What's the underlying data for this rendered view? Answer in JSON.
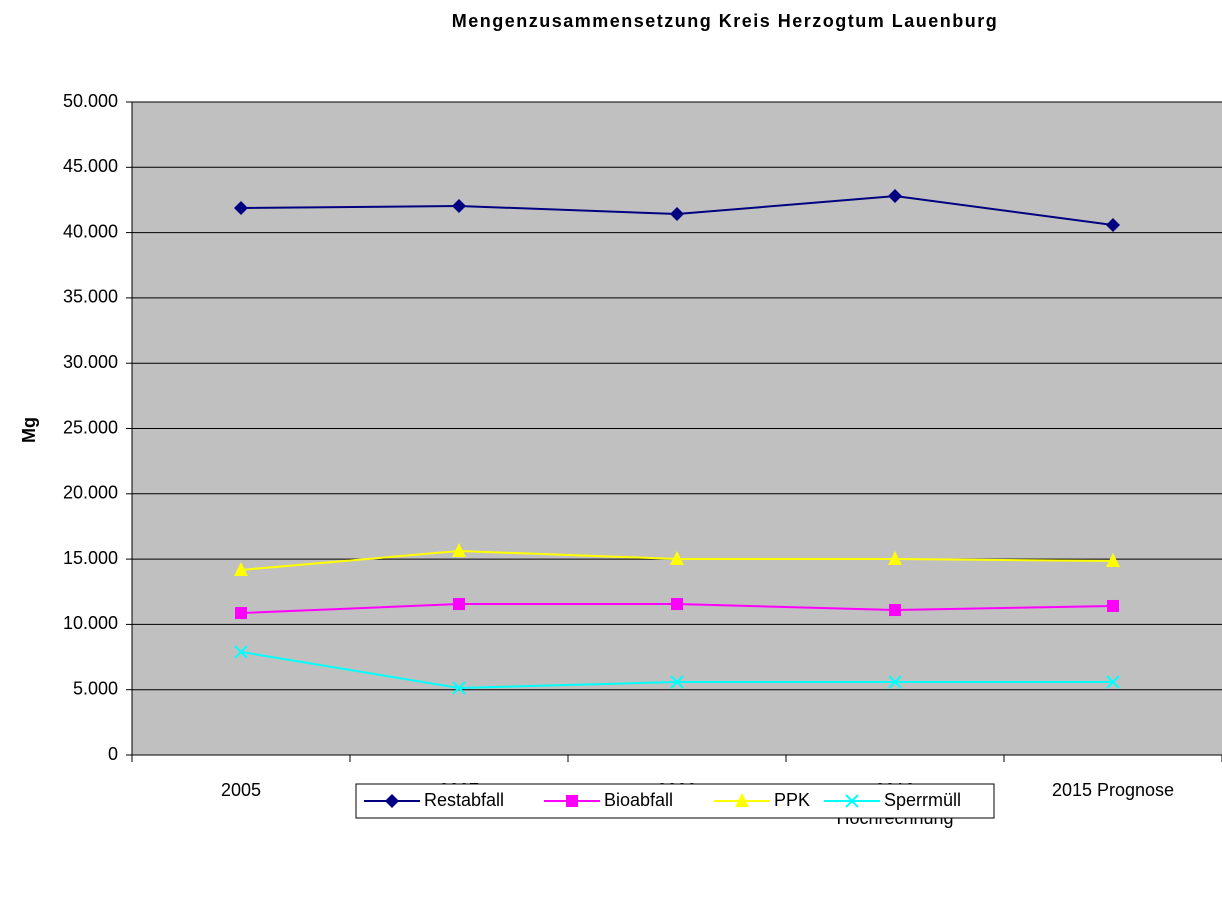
{
  "chart_data": {
    "type": "line",
    "title": "Mengenzusammensetzung Kreis Herzogtum Lauenburg",
    "y_label": "Mg",
    "categories": [
      "2005",
      "2007",
      "2009",
      "2010\nHochrechnung",
      "2015 Prognose"
    ],
    "series": [
      {
        "name": "Restabfall",
        "color": "#000080",
        "marker": "diamond",
        "values": [
          41880,
          42040,
          41420,
          42800,
          40580
        ]
      },
      {
        "name": "Bioabfall",
        "color": "#ff00ff",
        "marker": "square",
        "values": [
          10870,
          11560,
          11560,
          11100,
          11410
        ]
      },
      {
        "name": "PPK",
        "color": "#ffff00",
        "marker": "triangle",
        "values": [
          14170,
          15620,
          15010,
          15010,
          14850
        ]
      },
      {
        "name": "Sperrmüll",
        "color": "#00ffff",
        "marker": "x",
        "values": [
          7890,
          5130,
          5590,
          5590,
          5590
        ]
      }
    ],
    "ylim": [
      0,
      50000
    ],
    "yticks": [
      0,
      {
        "value": 5000,
        "label": "5.000"
      },
      {
        "value": 10000,
        "label": "10.000"
      },
      {
        "value": 15000,
        "label": "15.000"
      },
      {
        "value": 20000,
        "label": "20.000"
      },
      {
        "value": 25000,
        "label": "25.000"
      },
      {
        "value": 30000,
        "label": "30.000"
      },
      {
        "value": 35000,
        "label": "35.000"
      },
      {
        "value": 40000,
        "label": "40.000"
      },
      {
        "value": 45000,
        "label": "45.000"
      },
      {
        "value": 50000,
        "label": "50.000"
      }
    ],
    "grid": true,
    "plot_background": "#c0c0c0",
    "legend": "bottom"
  }
}
